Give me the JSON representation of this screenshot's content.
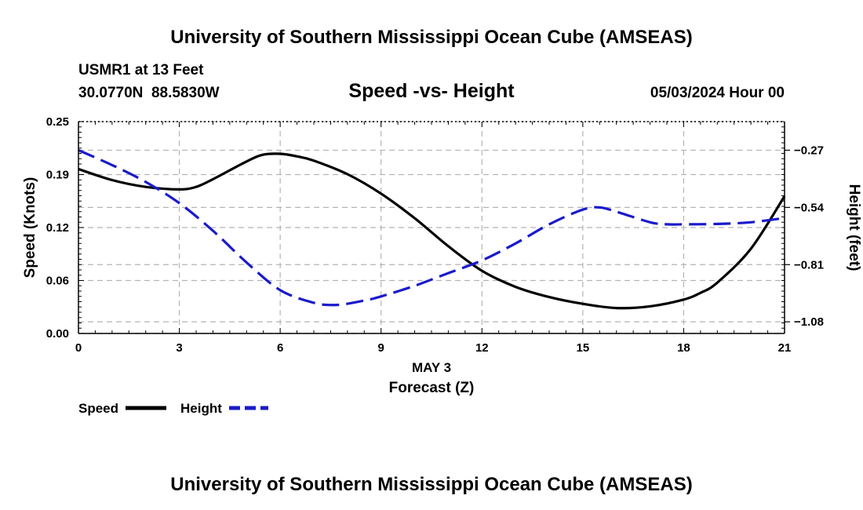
{
  "header": {
    "title_top": "University of Southern Mississippi Ocean Cube (AMSEAS)",
    "station": "USMR1 at 13 Feet",
    "coords": "30.0770N  88.5830W",
    "plot_title": "Speed -vs- Height",
    "datetime": "05/03/2024 Hour 00"
  },
  "footer": {
    "title_bottom": "University of Southern Mississippi Ocean Cube (AMSEAS)"
  },
  "colors": {
    "speed": "#000000",
    "height": "#1a1acc",
    "grid": "#b4b4b4"
  },
  "chart_data": {
    "type": "line",
    "title": "Speed -vs- Height",
    "xlabel": "Forecast (Z)",
    "xsublabel": "MAY 3",
    "ylabel_left": "Speed (Knots)",
    "ylabel_right": "Height (feet)",
    "xlim": [
      0,
      21
    ],
    "ylim_left": [
      0.0,
      0.25
    ],
    "ylim_right": [
      -1.135,
      -0.135
    ],
    "x_ticks": [
      0,
      3,
      6,
      9,
      12,
      15,
      18,
      21
    ],
    "x_tick_labels": [
      "0",
      "3",
      "6",
      "9",
      "12",
      "15",
      "18",
      "21"
    ],
    "left_ticks": [
      0.0,
      0.0625,
      0.125,
      0.1875,
      0.25
    ],
    "left_tick_labels": [
      "0.00",
      "0.06",
      "0.12",
      "0.19",
      "0.25"
    ],
    "right_ticks": [
      -1.08,
      -0.81,
      -0.54,
      -0.27
    ],
    "right_tick_labels": [
      "−1.08",
      "−0.81",
      "−0.54",
      "−0.27"
    ],
    "grid": true,
    "legend_position": "bottom-left",
    "series": [
      {
        "name": "Speed",
        "axis": "left",
        "style": "solid",
        "x": [
          0,
          1,
          2,
          3,
          3.5,
          4,
          5,
          5.5,
          6,
          6.5,
          7,
          8,
          9,
          10,
          11,
          12,
          13,
          14,
          15,
          16,
          17,
          18,
          18.5,
          19,
          20,
          21
        ],
        "values": [
          0.194,
          0.181,
          0.173,
          0.17,
          0.173,
          0.182,
          0.203,
          0.211,
          0.212,
          0.209,
          0.204,
          0.188,
          0.165,
          0.136,
          0.103,
          0.074,
          0.055,
          0.043,
          0.035,
          0.03,
          0.032,
          0.04,
          0.048,
          0.06,
          0.1,
          0.162
        ]
      },
      {
        "name": "Height",
        "axis": "right",
        "style": "dashed",
        "x": [
          0,
          1,
          2,
          3,
          4,
          5,
          6,
          7,
          7.7,
          8.5,
          9,
          10,
          11,
          12,
          13,
          14,
          15,
          15.5,
          16,
          17,
          17.5,
          18,
          19,
          20,
          21
        ],
        "values": [
          -0.27,
          -0.34,
          -0.42,
          -0.52,
          -0.65,
          -0.8,
          -0.93,
          -0.99,
          -1.0,
          -0.98,
          -0.96,
          -0.91,
          -0.85,
          -0.79,
          -0.71,
          -0.62,
          -0.55,
          -0.54,
          -0.56,
          -0.61,
          -0.62,
          -0.62,
          -0.618,
          -0.61,
          -0.59
        ]
      }
    ]
  }
}
